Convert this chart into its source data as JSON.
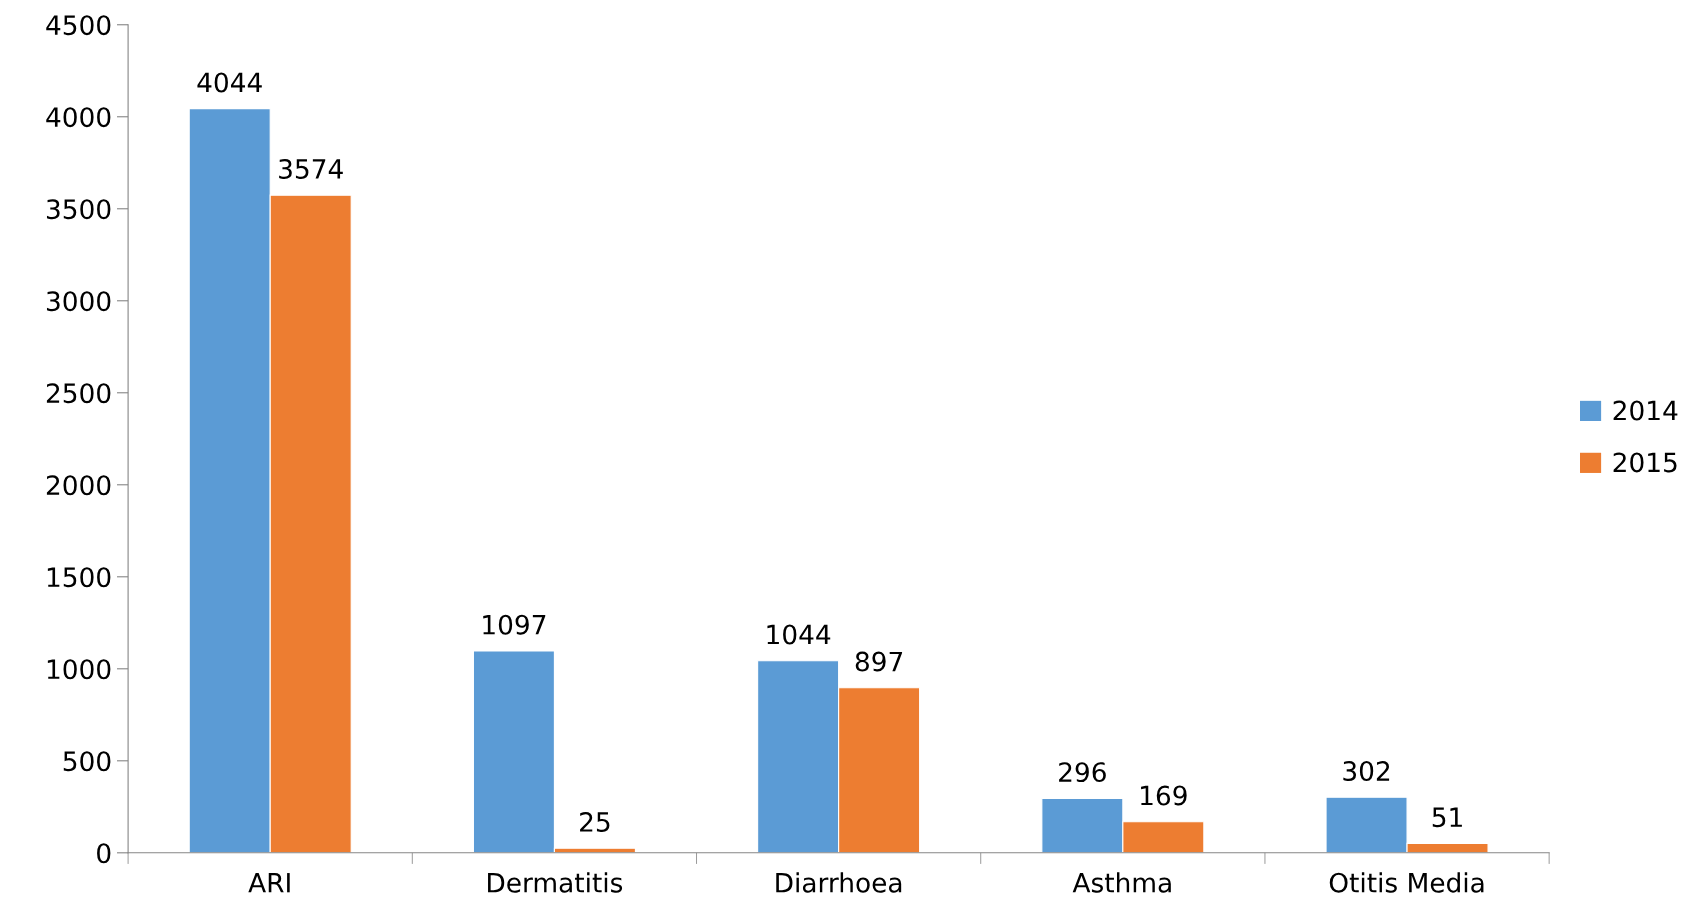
{
  "chart_data": {
    "type": "bar",
    "categories": [
      "ARI",
      "Dermatitis",
      "Diarrhoea",
      "Asthma",
      "Otitis Media"
    ],
    "series": [
      {
        "name": "2014",
        "color": "#5b9bd5",
        "values": [
          4044,
          1097,
          1044,
          296,
          302
        ]
      },
      {
        "name": "2015",
        "color": "#ed7d31",
        "values": [
          3574,
          25,
          897,
          169,
          51
        ]
      }
    ],
    "ylim": [
      0,
      4500
    ],
    "yticks": [
      0,
      500,
      1000,
      1500,
      2000,
      2500,
      3000,
      3500,
      4000,
      4500
    ],
    "data_labels": true,
    "grid": false,
    "legend": "right"
  }
}
